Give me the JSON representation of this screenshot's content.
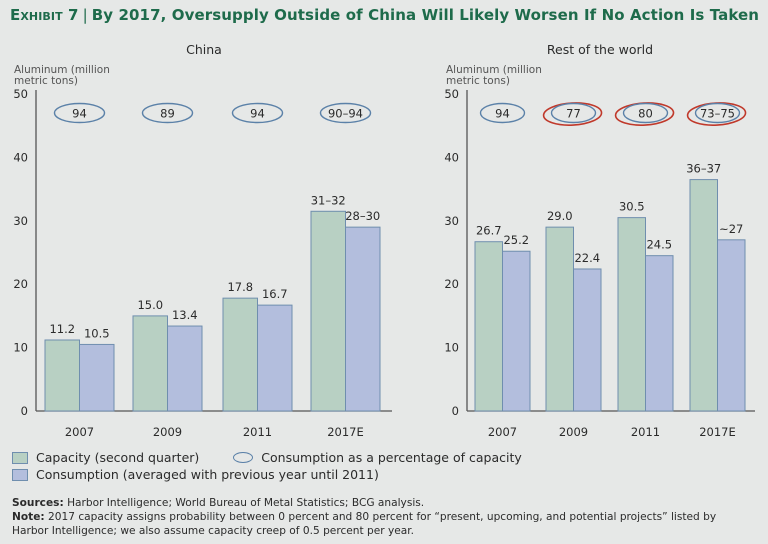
{
  "header": {
    "exhibit": "Exhibit 7",
    "separator": "|",
    "title": "By 2017, Oversupply Outside of China Will Likely Worsen If No Action Is Taken"
  },
  "colors": {
    "title": "#1e6b4b",
    "capacity": "#b8d0c3",
    "consumption": "#b3bedd",
    "bar_stroke": "#6f8eae",
    "ellipse": "#5b81a8",
    "highlight": "#c0392b"
  },
  "legend": {
    "capacity": "Capacity (second quarter)",
    "ratio": "Consumption as a percentage of capacity",
    "consumption": "Consumption (averaged with previous year until 2011)"
  },
  "notes": {
    "sources_label": "Sources:",
    "sources": "Harbor Intelligence; World Bureau of Metal Statistics; BCG analysis.",
    "note_label": "Note:",
    "note": "2017 capacity assigns probability between 0 percent and 80 percent for “present, upcoming, and potential projects” listed by Harbor Intelligence; we also assume capacity creep of 0.5 percent per year."
  },
  "chart_data": [
    {
      "type": "bar",
      "title": "China",
      "ylabel": "Aluminum (million metric tons)",
      "xlabel": "",
      "ylim": [
        0,
        50
      ],
      "yticks": [
        0,
        10,
        20,
        30,
        40,
        50
      ],
      "categories": [
        "2007",
        "2009",
        "2011",
        "2017E"
      ],
      "series": [
        {
          "name": "Capacity (second quarter)",
          "values": [
            11.2,
            15.0,
            17.8,
            31.5
          ],
          "labels": [
            "11.2",
            "15.0",
            "17.8",
            "31–32"
          ]
        },
        {
          "name": "Consumption (averaged with previous year until 2011)",
          "values": [
            10.5,
            13.4,
            16.7,
            29.0
          ],
          "labels": [
            "10.5",
            "13.4",
            "16.7",
            "28–30"
          ]
        }
      ],
      "ratio": {
        "name": "Consumption as a percentage of capacity",
        "labels": [
          "94",
          "89",
          "94",
          "90–94"
        ],
        "highlighted": [
          false,
          false,
          false,
          false
        ]
      },
      "grid": false,
      "legend": "bottom-left"
    },
    {
      "type": "bar",
      "title": "Rest of the world",
      "ylabel": "Aluminum (million metric tons)",
      "xlabel": "",
      "ylim": [
        0,
        50
      ],
      "yticks": [
        0,
        10,
        20,
        30,
        40,
        50
      ],
      "categories": [
        "2007",
        "2009",
        "2011",
        "2017E"
      ],
      "series": [
        {
          "name": "Capacity (second quarter)",
          "values": [
            26.7,
            29.0,
            30.5,
            36.5
          ],
          "labels": [
            "26.7",
            "29.0",
            "30.5",
            "36–37"
          ]
        },
        {
          "name": "Consumption (averaged with previous year until 2011)",
          "values": [
            25.2,
            22.4,
            24.5,
            27.0
          ],
          "labels": [
            "25.2",
            "22.4",
            "24.5",
            "~27"
          ]
        }
      ],
      "ratio": {
        "name": "Consumption as a percentage of capacity",
        "labels": [
          "94",
          "77",
          "80",
          "73–75"
        ],
        "highlighted": [
          false,
          true,
          true,
          true
        ]
      },
      "grid": false,
      "legend": "bottom-left"
    }
  ]
}
